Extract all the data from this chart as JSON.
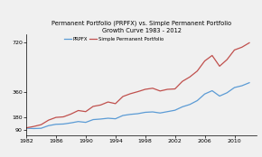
{
  "title_line1": "Permanent Portfolio (PRPFX) vs. Simple Permanent Portfolio",
  "title_line2": "Growth Curve 1983 - 2012",
  "legend_prpfx": "PRPFX",
  "legend_simple": "Simple Permanent Portfolio",
  "color_prpfx": "#5B9BD5",
  "color_simple": "#C0504D",
  "xlim": [
    1982,
    2013
  ],
  "ylim": [
    50,
    780
  ],
  "xticks": [
    1982,
    1986,
    1990,
    1994,
    1998,
    2002,
    2006,
    2010
  ],
  "yticks": [
    90,
    180,
    360,
    720
  ],
  "background": "#f0f0f0",
  "prpfx_x": [
    1982,
    1983,
    1984,
    1985,
    1986,
    1987,
    1988,
    1989,
    1990,
    1991,
    1992,
    1993,
    1994,
    1995,
    1996,
    1997,
    1998,
    1999,
    2000,
    2001,
    2002,
    2003,
    2004,
    2005,
    2006,
    2007,
    2008,
    2009,
    2010,
    2011,
    2012
  ],
  "prpfx_y": [
    100,
    97,
    99,
    118,
    128,
    130,
    138,
    148,
    142,
    162,
    166,
    172,
    168,
    192,
    200,
    205,
    215,
    218,
    210,
    220,
    230,
    255,
    272,
    300,
    348,
    372,
    333,
    357,
    395,
    408,
    430
  ],
  "simple_x": [
    1982,
    1983,
    1984,
    1985,
    1986,
    1987,
    1988,
    1989,
    1990,
    1991,
    1992,
    1993,
    1994,
    1995,
    1996,
    1997,
    1998,
    1999,
    2000,
    2001,
    2002,
    2003,
    2004,
    2005,
    2006,
    2007,
    2008,
    2009,
    2010,
    2011,
    2012
  ],
  "simple_y": [
    102,
    112,
    125,
    158,
    178,
    182,
    202,
    228,
    220,
    258,
    268,
    290,
    278,
    330,
    350,
    365,
    382,
    390,
    370,
    382,
    385,
    440,
    472,
    515,
    588,
    628,
    550,
    598,
    668,
    688,
    720
  ]
}
